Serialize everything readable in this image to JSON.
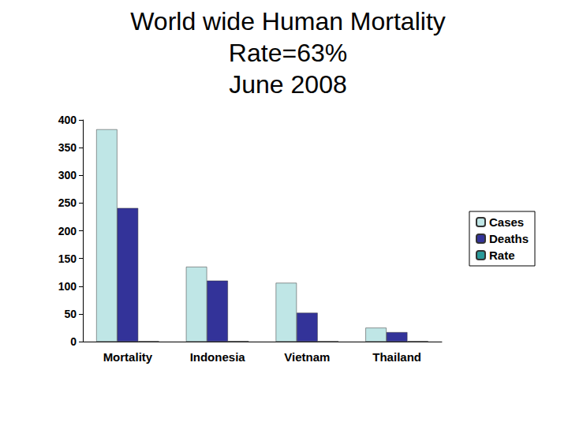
{
  "chart_data": {
    "type": "bar",
    "title": "World wide Human Mortality\nRate=63%\nJune 2008",
    "categories": [
      "Mortality",
      "Indonesia",
      "Vietnam",
      "Thailand"
    ],
    "series": [
      {
        "name": "Cases",
        "color": "#bfe6e6",
        "values": [
          383,
          135,
          106,
          25
        ]
      },
      {
        "name": "Deaths",
        "color": "#333399",
        "values": [
          241,
          110,
          52,
          17
        ]
      },
      {
        "name": "Rate",
        "color": "#2a9a9a",
        "values": [
          0.63,
          0.81,
          0.49,
          0.68
        ]
      }
    ],
    "ylim": [
      0,
      400
    ],
    "yticks": [
      0,
      50,
      100,
      150,
      200,
      250,
      300,
      350,
      400
    ],
    "grid": false,
    "legend": "right"
  }
}
